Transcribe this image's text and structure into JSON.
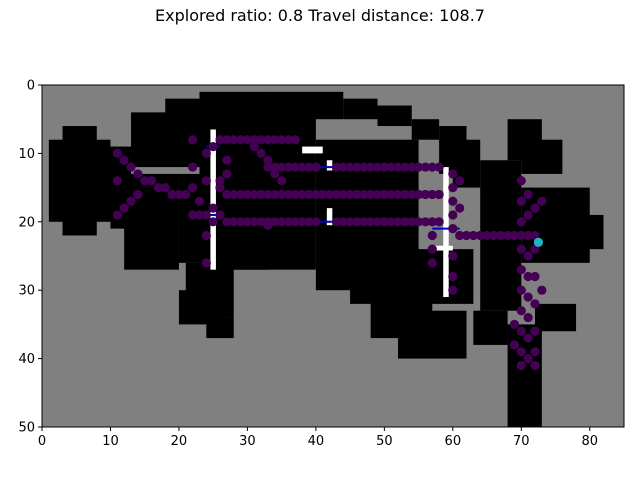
{
  "title": "Explored ratio: 0.8  Travel distance: 108.7",
  "chart_data": {
    "type": "heatmap",
    "title": "Explored ratio: 0.8  Travel distance: 108.7",
    "xlim": [
      0,
      85
    ],
    "ylim": [
      50,
      0
    ],
    "x_ticks": [
      0,
      10,
      20,
      30,
      40,
      50,
      60,
      70,
      80
    ],
    "y_ticks": [
      0,
      10,
      20,
      30,
      40,
      50
    ],
    "grid": false,
    "map": {
      "background": "unknown",
      "colors": {
        "unknown": "#808080",
        "free": "#000000",
        "obstacle": "#ffffff"
      },
      "free_boxes": [
        [
          18,
          28,
          2,
          9
        ],
        [
          23,
          33,
          1,
          27
        ],
        [
          33,
          44,
          1,
          5
        ],
        [
          44,
          49,
          2,
          5
        ],
        [
          49,
          54,
          3,
          6
        ],
        [
          54,
          58,
          5,
          8
        ],
        [
          58,
          62,
          6,
          13
        ],
        [
          60,
          64,
          8,
          15
        ],
        [
          64,
          70,
          11,
          33
        ],
        [
          68,
          73,
          5,
          11
        ],
        [
          70,
          76,
          8,
          13
        ],
        [
          70,
          80,
          15,
          26
        ],
        [
          78,
          82,
          19,
          24
        ],
        [
          3,
          8,
          6,
          22
        ],
        [
          1,
          10,
          8,
          20
        ],
        [
          10,
          13,
          9,
          21
        ],
        [
          12,
          20,
          13,
          27
        ],
        [
          20,
          26,
          13,
          26
        ],
        [
          13,
          24,
          4,
          12
        ],
        [
          26,
          40,
          2,
          27
        ],
        [
          40,
          55,
          8,
          30
        ],
        [
          45,
          63,
          24,
          32
        ],
        [
          48,
          57,
          30,
          37
        ],
        [
          52,
          62,
          33,
          40
        ],
        [
          21,
          28,
          26,
          34
        ],
        [
          20,
          26,
          30,
          35
        ],
        [
          24,
          28,
          34,
          37
        ],
        [
          63,
          68,
          33,
          38
        ],
        [
          68,
          73,
          35,
          50
        ],
        [
          72,
          78,
          32,
          36
        ]
      ],
      "obstacle_boxes": [
        [
          24.6,
          25.4,
          6.5,
          27
        ],
        [
          41.6,
          42.4,
          11,
          12.5
        ],
        [
          41.6,
          42.4,
          18,
          20.5
        ],
        [
          58.6,
          59.4,
          12,
          31
        ],
        [
          38,
          41,
          9,
          10
        ],
        [
          57,
          60,
          23.5,
          24.2
        ]
      ]
    },
    "explored_path_color": "#440154",
    "explored_path": [
      [
        11,
        10
      ],
      [
        11,
        14
      ],
      [
        11,
        19
      ],
      [
        12,
        11
      ],
      [
        12,
        18
      ],
      [
        13,
        12
      ],
      [
        13,
        17
      ],
      [
        14,
        13
      ],
      [
        14,
        16
      ],
      [
        15,
        14
      ],
      [
        16,
        14
      ],
      [
        17,
        15
      ],
      [
        18,
        15
      ],
      [
        19,
        16
      ],
      [
        20,
        16
      ],
      [
        21,
        16
      ],
      [
        22,
        15
      ],
      [
        22,
        8
      ],
      [
        22,
        12
      ],
      [
        22,
        19
      ],
      [
        23,
        19
      ],
      [
        24,
        19
      ],
      [
        25,
        18
      ],
      [
        26,
        19
      ],
      [
        27,
        20
      ],
      [
        28,
        20
      ],
      [
        29,
        20
      ],
      [
        30,
        20
      ],
      [
        31,
        20
      ],
      [
        32,
        20
      ],
      [
        33,
        20
      ],
      [
        34,
        20
      ],
      [
        35,
        20
      ],
      [
        36,
        20
      ],
      [
        37,
        20
      ],
      [
        38,
        20
      ],
      [
        39,
        20
      ],
      [
        40,
        20
      ],
      [
        43,
        20
      ],
      [
        44,
        20
      ],
      [
        45,
        20
      ],
      [
        46,
        20
      ],
      [
        47,
        20
      ],
      [
        48,
        20
      ],
      [
        49,
        20
      ],
      [
        50,
        20
      ],
      [
        51,
        20
      ],
      [
        52,
        20
      ],
      [
        53,
        20
      ],
      [
        54,
        20
      ],
      [
        55,
        20
      ],
      [
        56,
        20
      ],
      [
        57,
        20
      ],
      [
        58,
        20
      ],
      [
        60,
        21
      ],
      [
        61,
        22
      ],
      [
        62,
        22
      ],
      [
        63,
        22
      ],
      [
        64,
        22
      ],
      [
        65,
        22
      ],
      [
        66,
        22
      ],
      [
        67,
        22
      ],
      [
        68,
        22
      ],
      [
        69,
        22
      ],
      [
        70,
        22
      ],
      [
        71,
        22
      ],
      [
        72,
        22
      ],
      [
        24,
        10
      ],
      [
        24,
        14
      ],
      [
        24,
        22
      ],
      [
        24,
        26
      ],
      [
        26,
        8
      ],
      [
        27,
        8
      ],
      [
        28,
        8
      ],
      [
        29,
        8
      ],
      [
        30,
        8
      ],
      [
        31,
        8
      ],
      [
        32,
        8
      ],
      [
        33,
        8
      ],
      [
        34,
        8
      ],
      [
        35,
        8
      ],
      [
        36,
        8
      ],
      [
        37,
        8
      ],
      [
        26,
        14
      ],
      [
        26,
        15
      ],
      [
        27,
        16
      ],
      [
        28,
        16
      ],
      [
        29,
        16
      ],
      [
        30,
        16
      ],
      [
        31,
        16
      ],
      [
        32,
        16
      ],
      [
        33,
        16
      ],
      [
        34,
        16
      ],
      [
        35,
        16
      ],
      [
        36,
        16
      ],
      [
        37,
        16
      ],
      [
        38,
        16
      ],
      [
        39,
        16
      ],
      [
        40,
        16
      ],
      [
        41,
        16
      ],
      [
        42,
        16
      ],
      [
        43,
        16
      ],
      [
        44,
        16
      ],
      [
        45,
        16
      ],
      [
        46,
        16
      ],
      [
        47,
        16
      ],
      [
        48,
        16
      ],
      [
        49,
        16
      ],
      [
        50,
        16
      ],
      [
        51,
        16
      ],
      [
        52,
        16
      ],
      [
        53,
        16
      ],
      [
        54,
        16
      ],
      [
        55,
        16
      ],
      [
        56,
        16
      ],
      [
        57,
        16
      ],
      [
        58,
        16
      ],
      [
        33,
        12
      ],
      [
        34,
        12
      ],
      [
        35,
        12
      ],
      [
        36,
        12
      ],
      [
        37,
        12
      ],
      [
        38,
        12
      ],
      [
        39,
        12
      ],
      [
        40,
        12
      ],
      [
        43,
        12
      ],
      [
        44,
        12
      ],
      [
        45,
        12
      ],
      [
        46,
        12
      ],
      [
        47,
        12
      ],
      [
        48,
        12
      ],
      [
        49,
        12
      ],
      [
        50,
        12
      ],
      [
        51,
        12
      ],
      [
        52,
        12
      ],
      [
        53,
        12
      ],
      [
        54,
        12
      ],
      [
        55,
        12
      ],
      [
        56,
        12
      ],
      [
        57,
        12
      ],
      [
        58,
        12
      ],
      [
        57,
        22
      ],
      [
        57,
        24
      ],
      [
        57,
        26
      ],
      [
        60,
        13
      ],
      [
        60,
        15
      ],
      [
        60,
        17
      ],
      [
        60,
        19
      ],
      [
        60,
        25
      ],
      [
        60,
        28
      ],
      [
        60,
        30
      ],
      [
        61,
        14
      ],
      [
        61,
        18
      ],
      [
        70,
        14
      ],
      [
        70,
        17
      ],
      [
        70,
        20
      ],
      [
        70,
        24
      ],
      [
        70,
        27
      ],
      [
        70,
        30
      ],
      [
        70,
        33
      ],
      [
        70,
        36
      ],
      [
        70,
        39
      ],
      [
        71,
        16
      ],
      [
        71,
        19
      ],
      [
        71,
        25
      ],
      [
        71,
        28
      ],
      [
        71,
        31
      ],
      [
        71,
        34
      ],
      [
        71,
        37
      ],
      [
        71,
        40
      ],
      [
        72,
        18
      ],
      [
        72,
        24
      ],
      [
        72,
        28
      ],
      [
        72,
        32
      ],
      [
        72,
        36
      ],
      [
        72,
        39
      ],
      [
        73,
        30
      ],
      [
        73,
        17
      ],
      [
        69,
        35
      ],
      [
        69,
        38
      ],
      [
        70,
        41
      ],
      [
        72,
        41
      ],
      [
        33,
        20.5
      ],
      [
        31,
        9
      ],
      [
        32,
        10
      ],
      [
        33,
        11
      ],
      [
        34,
        13
      ],
      [
        35,
        14
      ],
      [
        27,
        11
      ],
      [
        27,
        13
      ],
      [
        23,
        17
      ],
      [
        25,
        9
      ],
      [
        25,
        20
      ]
    ],
    "path_segments_color": "#0000cd",
    "path_segments": [
      [
        [
          24,
          9
        ],
        [
          26,
          9
        ]
      ],
      [
        [
          24,
          19
        ],
        [
          26,
          19
        ]
      ],
      [
        [
          40,
          12
        ],
        [
          44,
          12
        ]
      ],
      [
        [
          40,
          20
        ],
        [
          44,
          20
        ]
      ],
      [
        [
          57,
          21
        ],
        [
          61,
          21
        ]
      ]
    ],
    "robot_position": [
      72.5,
      23
    ],
    "robot_color": "#1fb4c8"
  }
}
